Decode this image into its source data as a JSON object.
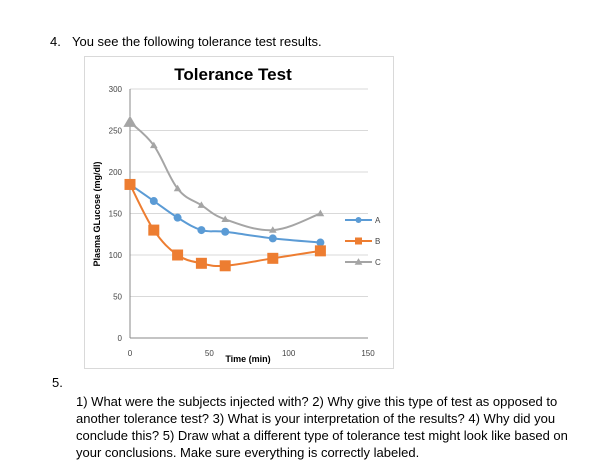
{
  "question4": {
    "number": "4.",
    "text": "You see the following tolerance test results."
  },
  "question5": {
    "number": "5.",
    "text": "1) What were the subjects injected with? 2) Why give this type of test as opposed to another tolerance test? 3) What is your interpretation of the results?  4) Why did you conclude this? 5) Draw what a different type of tolerance test might look like based on your conclusions. Make sure everything is correctly labeled."
  },
  "chart_data": {
    "type": "line",
    "title": "Tolerance Test",
    "xlabel": "Time (min)",
    "ylabel": "Plasma GLucose (mg/dl)",
    "xlim": [
      0,
      150
    ],
    "ylim": [
      0,
      300
    ],
    "x_ticks": [
      0,
      50,
      100,
      150
    ],
    "y_ticks": [
      0,
      50,
      100,
      150,
      200,
      250,
      300
    ],
    "grid": "horizontal",
    "legend_position": "right",
    "series": [
      {
        "name": "A",
        "color": "#5B9BD5",
        "marker": "circle",
        "x": [
          0,
          15,
          30,
          45,
          60,
          90,
          120
        ],
        "y": [
          185,
          165,
          145,
          130,
          128,
          120,
          115
        ]
      },
      {
        "name": "B",
        "color": "#ED7D31",
        "marker": "square",
        "x": [
          0,
          15,
          30,
          45,
          60,
          90,
          120
        ],
        "y": [
          185,
          130,
          100,
          90,
          87,
          96,
          105
        ]
      },
      {
        "name": "C",
        "color": "#A5A5A5",
        "marker": "triangle",
        "x": [
          0,
          15,
          30,
          45,
          60,
          90,
          120
        ],
        "y": [
          260,
          232,
          180,
          160,
          143,
          130,
          150
        ]
      }
    ]
  }
}
